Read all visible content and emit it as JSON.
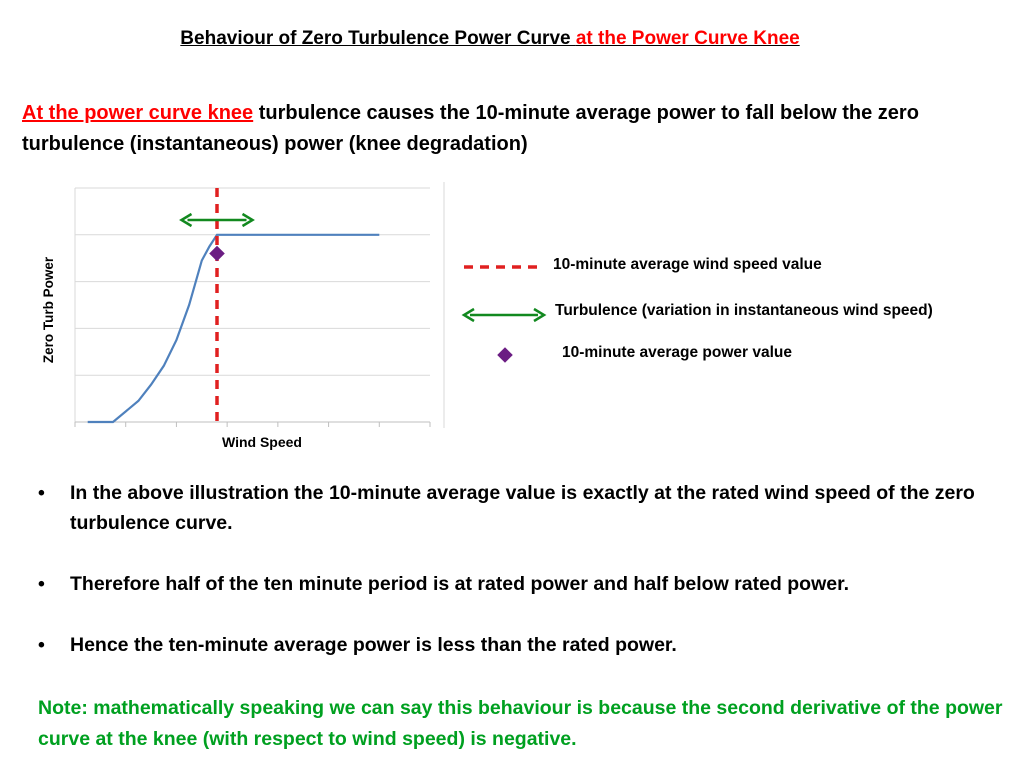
{
  "title": {
    "part1": "Behaviour of Zero Turbulence Power Curve ",
    "part2": "at the Power Curve Knee"
  },
  "intro": {
    "highlight": "At the power curve knee",
    "rest": " turbulence causes the 10-minute average power to fall below the zero turbulence (instantaneous) power (knee degradation)"
  },
  "chart_data": {
    "type": "line",
    "title": "",
    "xlabel": "Wind Speed",
    "ylabel": "Zero Turb Power",
    "grid": true,
    "xlim": [
      0,
      14
    ],
    "ylim": [
      0,
      5
    ],
    "series": [
      {
        "x": [
          0.5,
          1.5,
          2.5,
          3.0,
          3.5,
          4.0,
          4.5,
          5.0,
          5.3,
          5.6,
          12.0
        ],
        "y": [
          0.0,
          0.0,
          0.45,
          0.8,
          1.2,
          1.75,
          2.5,
          3.45,
          3.75,
          4.0,
          4.0
        ]
      }
    ],
    "average_wind_speed": 5.6,
    "turbulence_range": [
      4.2,
      7.0
    ],
    "average_power_point": {
      "x": 5.6,
      "y": 3.6
    }
  },
  "legend": {
    "avg_wind": "10-minute average wind speed value",
    "turbulence": "Turbulence (variation in instantaneous wind speed)",
    "avg_power": "10-minute average power value"
  },
  "bullets": [
    "In the above illustration the 10-minute average value is exactly at the rated wind speed of the zero turbulence curve.",
    "Therefore half of the ten minute period is at rated power and half below rated power.",
    "Hence the ten-minute average power is less than the rated power."
  ],
  "bullet_symbol": "•",
  "note": "Note: mathematically speaking we can say this behaviour is because the second derivative of the power curve at the knee (with respect to wind speed) is negative.",
  "colors": {
    "highlight": "#ff0000",
    "curve": "#4f81bd",
    "wind_marker": "#e02020",
    "turbulence_arrow": "#12891f",
    "power_marker": "#6b1d83",
    "note": "#00a020"
  }
}
